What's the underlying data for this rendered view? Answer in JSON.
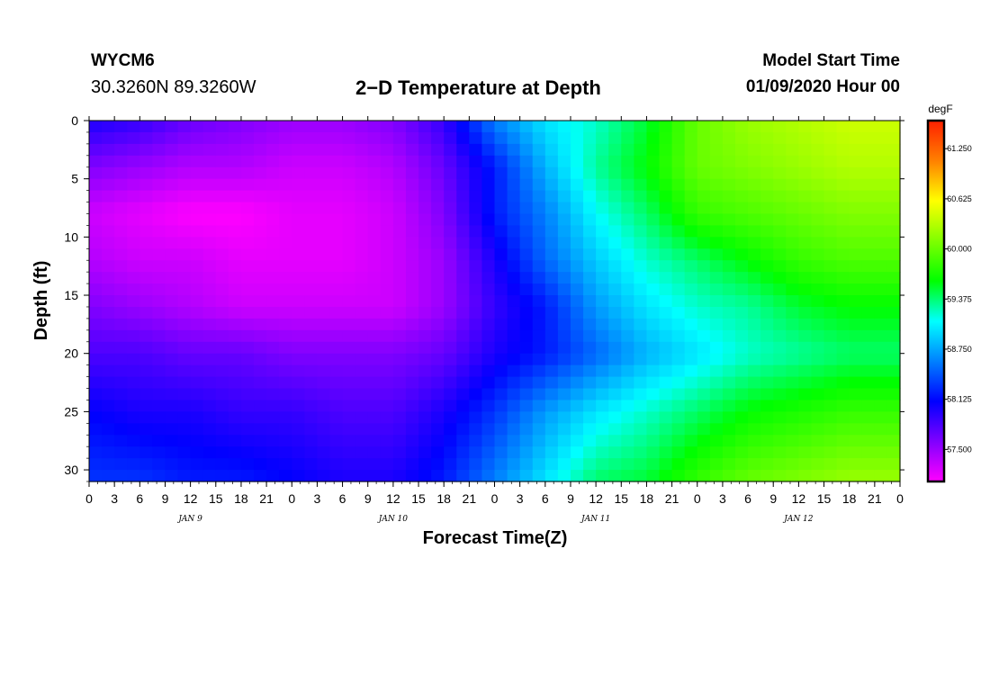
{
  "header": {
    "station": "WYCM6",
    "location": "30.3260N 89.3260W",
    "title": "2−D Temperature at Depth",
    "start_label": "Model Start Time",
    "start_value": "01/09/2020 Hour 00"
  },
  "chart_data": {
    "type": "heatmap",
    "title": "2−D Temperature at Depth",
    "xlabel": "Forecast Time(Z)",
    "ylabel": "Depth (ft)",
    "x_range_hours": [
      0,
      96
    ],
    "x_tick_labels": [
      "0",
      "3",
      "6",
      "9",
      "12",
      "15",
      "18",
      "21",
      "0",
      "3",
      "6",
      "9",
      "12",
      "15",
      "18",
      "21",
      "0",
      "3",
      "6",
      "9",
      "12",
      "15",
      "18",
      "21",
      "0",
      "3",
      "6",
      "9",
      "12",
      "15",
      "18",
      "21",
      "0"
    ],
    "day_labels": [
      {
        "label": "JAN 9",
        "hour": 12
      },
      {
        "label": "JAN 10",
        "hour": 36
      },
      {
        "label": "JAN 11",
        "hour": 60
      },
      {
        "label": "JAN 12",
        "hour": 84
      }
    ],
    "ylim": [
      0,
      31
    ],
    "y_ticks": [
      0,
      5,
      10,
      15,
      20,
      25,
      30
    ],
    "colorbar": {
      "unit": "degF",
      "min": 57.1,
      "max": 61.6,
      "ticks": [
        57.5,
        58.125,
        58.75,
        59.375,
        60.0,
        60.625,
        61.25
      ],
      "tick_labels": [
        "57.500",
        "58.125",
        "58.750",
        "59.375",
        "60.000",
        "60.625",
        "61.250"
      ],
      "colors": [
        "#ff00ff",
        "#8000ff",
        "#0000ff",
        "#0080ff",
        "#00ffff",
        "#00ff00",
        "#80ff00",
        "#ffff00",
        "#ff8000",
        "#ff2000"
      ]
    },
    "depths_ft": [
      0,
      3,
      6,
      10,
      15,
      18,
      21,
      24,
      27,
      29,
      31
    ],
    "times_hr": [
      0,
      3,
      6,
      9,
      12,
      15,
      18,
      21,
      24,
      27,
      30,
      33,
      36,
      39,
      42,
      45,
      48,
      51,
      54,
      57,
      60,
      63,
      66,
      69,
      72,
      75,
      78,
      81,
      84,
      87,
      90,
      93,
      96
    ],
    "temperature_degF": [
      [
        58.0,
        57.6,
        57.3,
        57.4,
        57.6,
        57.8,
        58.1,
        58.3
      ],
      [
        57.9,
        57.5,
        57.2,
        57.3,
        57.5,
        57.8,
        58.0,
        58.3
      ],
      [
        57.7,
        57.4,
        57.1,
        57.3,
        57.4,
        57.7,
        58.0,
        58.2
      ],
      [
        57.6,
        57.4,
        57.1,
        57.2,
        57.3,
        57.7,
        57.9,
        58.2
      ],
      [
        57.5,
        57.3,
        57.2,
        57.2,
        57.3,
        57.6,
        57.9,
        58.1
      ],
      [
        57.5,
        57.3,
        57.2,
        57.2,
        57.3,
        57.6,
        57.8,
        58.0
      ],
      [
        57.6,
        57.4,
        57.3,
        57.3,
        57.3,
        57.6,
        57.8,
        58.0
      ],
      [
        57.9,
        57.7,
        57.6,
        57.5,
        57.5,
        57.7,
        58.0,
        58.2
      ],
      [
        58.6,
        58.2,
        58.2,
        58.0,
        57.9,
        58.0,
        58.3,
        58.6
      ],
      [
        59.0,
        58.8,
        58.6,
        58.5,
        58.2,
        58.2,
        58.7,
        59.0
      ],
      [
        59.2,
        59.3,
        59.1,
        58.9,
        58.7,
        58.5,
        59.0,
        59.4
      ],
      [
        59.5,
        59.6,
        59.4,
        59.2,
        59.0,
        58.8,
        59.2,
        59.5
      ],
      [
        60.0,
        60.0,
        59.8,
        59.4,
        59.2,
        59.0,
        59.4,
        59.8
      ],
      [
        60.2,
        60.1,
        59.9,
        59.6,
        59.3,
        59.2,
        59.6,
        60.0
      ],
      [
        60.3,
        60.2,
        60.0,
        59.8,
        59.5,
        59.3,
        59.7,
        60.1
      ],
      [
        60.4,
        60.3,
        60.1,
        59.9,
        59.6,
        59.4,
        59.8,
        60.2
      ],
      [
        60.4,
        60.3,
        60.1,
        59.9,
        59.6,
        59.4,
        59.8,
        60.2
      ]
    ]
  }
}
